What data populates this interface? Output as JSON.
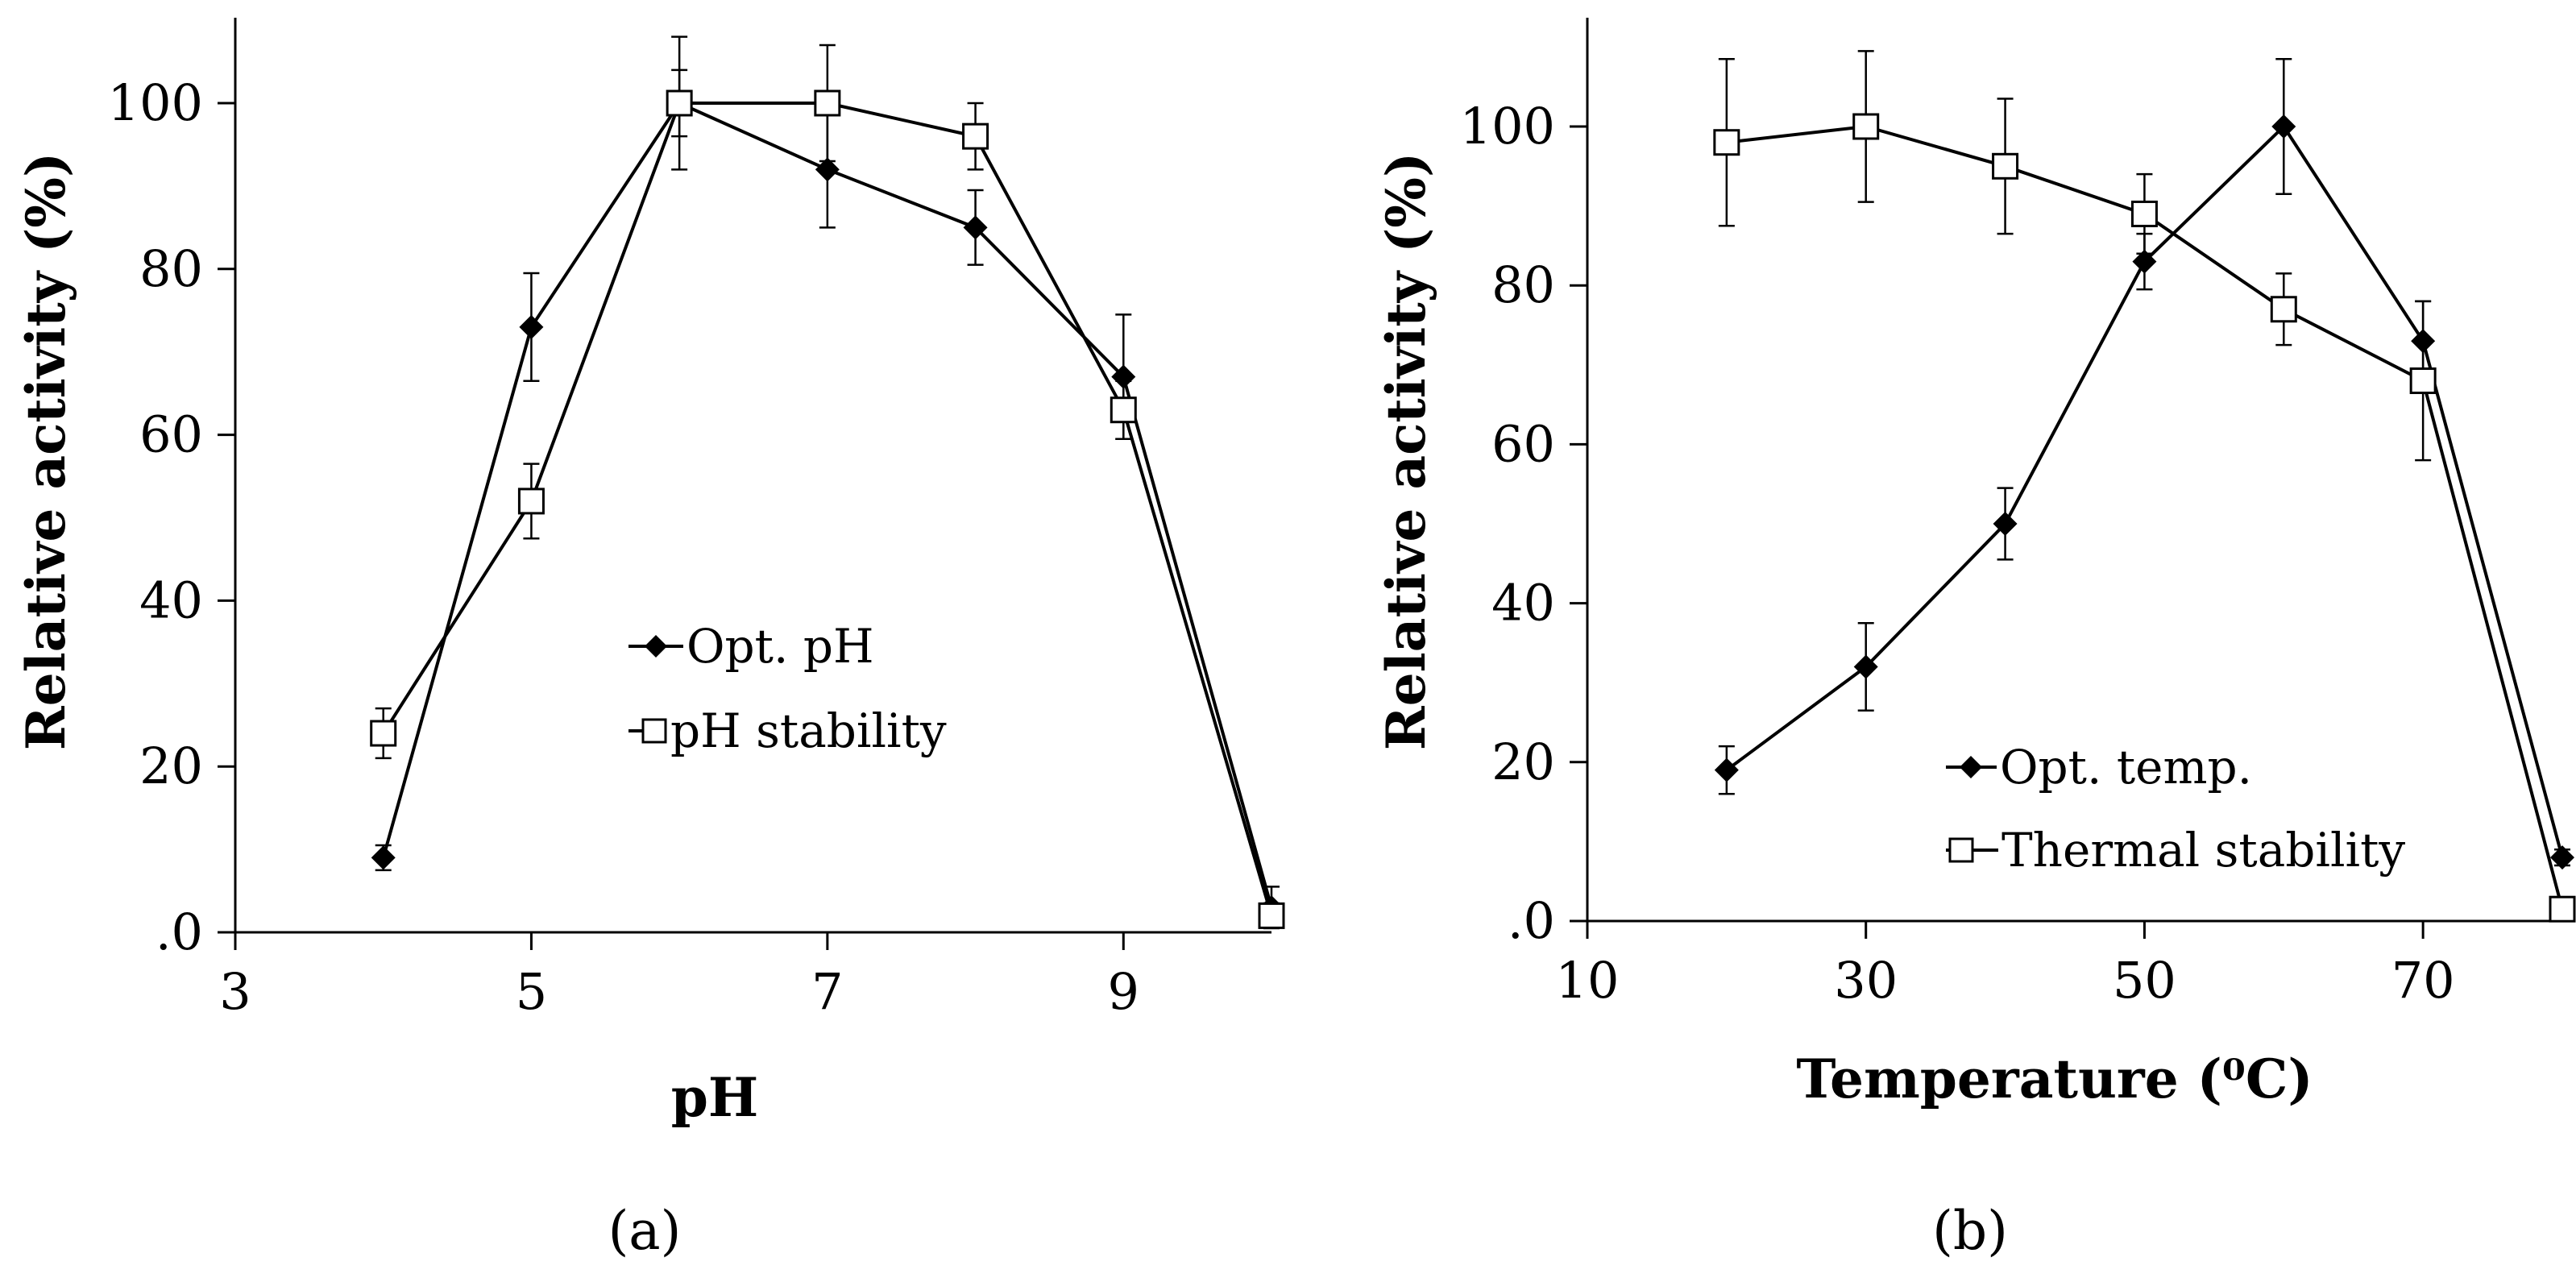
{
  "chart_data": [
    {
      "type": "line",
      "panel_label": "(a)",
      "title": "",
      "xlabel": "pH",
      "ylabel": "Relative activity (%)",
      "xlim": [
        3,
        10
      ],
      "ylim": [
        0,
        110
      ],
      "xticks": [
        3,
        5,
        7,
        9
      ],
      "xtick_labels": [
        "3",
        "5",
        "7",
        "9"
      ],
      "yticks": [
        0,
        20,
        40,
        60,
        80,
        100
      ],
      "ytick_labels": [
        ".0",
        "20",
        "40",
        "60",
        "80",
        "100"
      ],
      "grid": false,
      "legend_position": "center",
      "series": [
        {
          "name": "Opt. pH",
          "marker": "filled-diamond",
          "x": [
            4,
            5,
            6,
            7,
            8,
            9,
            10
          ],
          "y": [
            9,
            73,
            100,
            92,
            85,
            67,
            3
          ],
          "error": [
            1.5,
            6.5,
            4,
            7,
            4.5,
            7.5,
            2.5
          ]
        },
        {
          "name": "pH stability",
          "marker": "open-square",
          "x": [
            4,
            5,
            6,
            7,
            8,
            9,
            10
          ],
          "y": [
            24,
            52,
            100,
            100,
            96,
            63,
            2
          ],
          "error": [
            3,
            4.5,
            8,
            7,
            4,
            3.5,
            1.5
          ]
        }
      ]
    },
    {
      "type": "line",
      "panel_label": "(b)",
      "title": "",
      "xlabel": "Temperature (⁰C)",
      "ylabel": "Relative activity (%)",
      "xlim": [
        10,
        80
      ],
      "ylim": [
        0,
        110
      ],
      "xticks": [
        10,
        30,
        50,
        70
      ],
      "xtick_labels": [
        "10",
        "30",
        "50",
        "70"
      ],
      "yticks": [
        0,
        20,
        40,
        60,
        80,
        100
      ],
      "ytick_labels": [
        ".0",
        "20",
        "40",
        "60",
        "80",
        "100"
      ],
      "grid": false,
      "legend_position": "bottom-right",
      "series": [
        {
          "name": "Opt. temp.",
          "marker": "filled-diamond",
          "x": [
            20,
            30,
            40,
            50,
            60,
            70,
            80
          ],
          "y": [
            19,
            32,
            50,
            83,
            100,
            73,
            8
          ],
          "error": [
            3,
            5.5,
            4.5,
            3.5,
            8.5,
            5,
            1
          ]
        },
        {
          "name": "Thermal stability",
          "marker": "open-square",
          "x": [
            20,
            30,
            40,
            50,
            60,
            70,
            80
          ],
          "y": [
            98,
            100,
            95,
            89,
            77,
            68,
            1.5
          ],
          "error": [
            10.5,
            9.5,
            8.5,
            5,
            4.5,
            10,
            1
          ]
        }
      ]
    }
  ]
}
